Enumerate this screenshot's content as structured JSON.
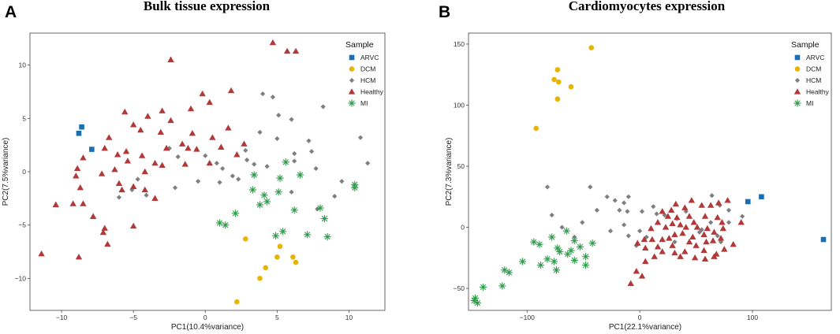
{
  "colors": {
    "ARVC": "#1a6fb4",
    "DCM": "#e8b400",
    "HCM": "#7f7f7f",
    "Healthy": "#b0393a",
    "MI": "#2e9a4a"
  },
  "chart_data": [
    {
      "panel": "A",
      "type": "scatter",
      "title": "Bulk tissue expression",
      "xlabel": "PC1(10.4%variance)",
      "ylabel": "PC2(7.5%variance)",
      "xlim": [
        -12.2,
        12.5
      ],
      "ylim": [
        -13,
        13
      ],
      "xticks": [
        -10,
        -5,
        0,
        5,
        10
      ],
      "yticks": [
        -10,
        -5,
        0,
        5,
        10
      ],
      "legend_title": "Sample",
      "legend_position": "top-right",
      "series": [
        {
          "name": "ARVC",
          "shape": "square",
          "points": [
            [
              -8.6,
              4.2
            ],
            [
              -8.8,
              3.6
            ],
            [
              -7.9,
              2.1
            ]
          ]
        },
        {
          "name": "DCM",
          "shape": "circle",
          "points": [
            [
              2.8,
              -6.3
            ],
            [
              5.2,
              -7.0
            ],
            [
              5.0,
              -8.0
            ],
            [
              6.1,
              -8.0
            ],
            [
              6.3,
              -8.5
            ],
            [
              4.2,
              -9.0
            ],
            [
              3.8,
              -10.0
            ],
            [
              2.2,
              -12.2
            ]
          ]
        },
        {
          "name": "HCM",
          "shape": "diamond",
          "points": [
            [
              4.0,
              7.3
            ],
            [
              4.7,
              7.0
            ],
            [
              8.2,
              6.1
            ],
            [
              5.1,
              5.3
            ],
            [
              6.0,
              4.9
            ],
            [
              3.8,
              3.7
            ],
            [
              5.0,
              3.1
            ],
            [
              7.2,
              2.9
            ],
            [
              10.8,
              3.2
            ],
            [
              7.4,
              1.9
            ],
            [
              6.2,
              1.7
            ],
            [
              2.9,
              1.1
            ],
            [
              2.8,
              2.0
            ],
            [
              3.4,
              0.7
            ],
            [
              4.3,
              0.5
            ],
            [
              6.2,
              1.0
            ],
            [
              7.7,
              0.3
            ],
            [
              11.3,
              0.8
            ],
            [
              0.0,
              1.5
            ],
            [
              0.8,
              0.8
            ],
            [
              1.2,
              0.3
            ],
            [
              1.9,
              -0.4
            ],
            [
              2.3,
              -0.7
            ],
            [
              -0.5,
              -0.9
            ],
            [
              1.0,
              -1.0
            ],
            [
              -2.5,
              2.2
            ],
            [
              -1.9,
              1.4
            ],
            [
              -4.7,
              -0.7
            ],
            [
              -5.1,
              -1.7
            ],
            [
              -4.1,
              -2.2
            ],
            [
              -2.1,
              -1.5
            ],
            [
              -6.0,
              -2.4
            ],
            [
              6.0,
              -1.9
            ],
            [
              7.8,
              -3.5
            ],
            [
              9.0,
              -2.3
            ],
            [
              9.5,
              -0.9
            ]
          ]
        },
        {
          "name": "Healthy",
          "shape": "triangle",
          "points": [
            [
              -2.4,
              10.5
            ],
            [
              4.7,
              12.1
            ],
            [
              5.7,
              11.3
            ],
            [
              6.3,
              11.3
            ],
            [
              1.8,
              7.6
            ],
            [
              -0.2,
              7.3
            ],
            [
              0.3,
              6.5
            ],
            [
              -3.0,
              5.7
            ],
            [
              -5.6,
              5.6
            ],
            [
              -4.0,
              5.2
            ],
            [
              -2.4,
              4.8
            ],
            [
              -1.0,
              5.9
            ],
            [
              -0.9,
              3.6
            ],
            [
              -6.7,
              3.2
            ],
            [
              -7.0,
              2.2
            ],
            [
              -5.0,
              4.4
            ],
            [
              -1.6,
              2.6
            ],
            [
              -3.1,
              3.7
            ],
            [
              -4.5,
              3.9
            ],
            [
              -2.7,
              2.2
            ],
            [
              -1.2,
              2.2
            ],
            [
              0.5,
              3.2
            ],
            [
              1.6,
              4.1
            ],
            [
              1.1,
              2.3
            ],
            [
              2.7,
              2.6
            ],
            [
              2.2,
              1.6
            ],
            [
              -5.5,
              1.9
            ],
            [
              -6.1,
              1.6
            ],
            [
              -4.4,
              1.5
            ],
            [
              -3.5,
              0.8
            ],
            [
              -3.0,
              0.6
            ],
            [
              -1.4,
              0.7
            ],
            [
              -0.6,
              2.1
            ],
            [
              0.3,
              0.8
            ],
            [
              -8.5,
              1.3
            ],
            [
              -8.9,
              0.3
            ],
            [
              -6.3,
              0.2
            ],
            [
              -5.4,
              1.0
            ],
            [
              -4.2,
              0.0
            ],
            [
              -6.0,
              -1.1
            ],
            [
              -8.7,
              -1.5
            ],
            [
              -9.0,
              -0.4
            ],
            [
              -7.2,
              -0.2
            ],
            [
              -5.0,
              -1.4
            ],
            [
              -5.8,
              -1.7
            ],
            [
              -3.5,
              -2.5
            ],
            [
              -4.2,
              -1.7
            ],
            [
              -9.2,
              -3.0
            ],
            [
              -8.5,
              -3.0
            ],
            [
              -10.4,
              -3.1
            ],
            [
              -7.8,
              -4.2
            ],
            [
              -7.1,
              -5.7
            ],
            [
              -6.8,
              -6.8
            ],
            [
              -5.0,
              -5.1
            ],
            [
              -7.0,
              -5.3
            ],
            [
              -8.8,
              -8.0
            ],
            [
              -11.4,
              -7.7
            ]
          ]
        },
        {
          "name": "MI",
          "shape": "star",
          "points": [
            [
              5.6,
              0.9
            ],
            [
              3.4,
              -0.3
            ],
            [
              5.2,
              -0.6
            ],
            [
              6.6,
              -0.3
            ],
            [
              10.4,
              -1.2
            ],
            [
              10.4,
              -1.5
            ],
            [
              3.3,
              -1.7
            ],
            [
              4.1,
              -2.2
            ],
            [
              5.1,
              -1.9
            ],
            [
              4.3,
              -2.8
            ],
            [
              3.8,
              -3.1
            ],
            [
              6.2,
              -3.6
            ],
            [
              8.0,
              -3.4
            ],
            [
              2.1,
              -3.9
            ],
            [
              8.3,
              -4.4
            ],
            [
              1.0,
              -4.8
            ],
            [
              1.4,
              -5.0
            ],
            [
              5.4,
              -5.6
            ],
            [
              4.9,
              -6.0
            ],
            [
              7.1,
              -5.9
            ],
            [
              8.5,
              -6.1
            ]
          ]
        }
      ]
    },
    {
      "panel": "B",
      "type": "scatter",
      "title": "Cardiomyocytes expression",
      "xlabel": "PC1(22.1%variance)",
      "ylabel": "PC2(7.3%variance)",
      "xlim": [
        -152,
        170
      ],
      "ylim": [
        -68,
        159
      ],
      "xticks": [
        -100,
        0,
        100
      ],
      "yticks": [
        -50,
        0,
        50,
        100,
        150
      ],
      "legend_title": "Sample",
      "legend_position": "top-right",
      "series": [
        {
          "name": "ARVC",
          "shape": "square",
          "points": [
            [
              108,
              25
            ],
            [
              96,
              21
            ],
            [
              163,
              -10
            ]
          ]
        },
        {
          "name": "DCM",
          "shape": "circle",
          "points": [
            [
              -43,
              147
            ],
            [
              -73,
              129
            ],
            [
              -76,
              121
            ],
            [
              -72,
              119
            ],
            [
              -61,
              115
            ],
            [
              -73,
              105
            ],
            [
              -92,
              81
            ]
          ]
        },
        {
          "name": "HCM",
          "shape": "diamond",
          "points": [
            [
              -82,
              33
            ],
            [
              -44,
              33
            ],
            [
              -29,
              25
            ],
            [
              -22,
              22
            ],
            [
              -14,
              20
            ],
            [
              -10,
              25
            ],
            [
              -38,
              14
            ],
            [
              -18,
              14
            ],
            [
              -11,
              13
            ],
            [
              2,
              13
            ],
            [
              12,
              17
            ],
            [
              15,
              11
            ],
            [
              22,
              10
            ],
            [
              33,
              7
            ],
            [
              41,
              13
            ],
            [
              -78,
              10
            ],
            [
              -69,
              0
            ],
            [
              -51,
              4
            ],
            [
              -58,
              -8
            ],
            [
              -26,
              -3
            ],
            [
              -14,
              2
            ],
            [
              -10,
              -7
            ],
            [
              0,
              -3
            ],
            [
              6,
              -8
            ],
            [
              -3,
              -15
            ],
            [
              64,
              26
            ],
            [
              71,
              18
            ],
            [
              79,
              14
            ],
            [
              91,
              9
            ],
            [
              79,
              4
            ],
            [
              63,
              4
            ],
            [
              55,
              -2
            ],
            [
              53,
              -4
            ],
            [
              69,
              -7
            ],
            [
              72,
              -12
            ],
            [
              31,
              -12
            ]
          ]
        },
        {
          "name": "Healthy",
          "shape": "triangle",
          "points": [
            [
              78,
              22
            ],
            [
              70,
              20
            ],
            [
              63,
              18
            ],
            [
              46,
              22
            ],
            [
              55,
              18
            ],
            [
              32,
              19
            ],
            [
              40,
              16
            ],
            [
              28,
              14
            ],
            [
              20,
              13
            ],
            [
              25,
              9
            ],
            [
              33,
              8
            ],
            [
              44,
              9
            ],
            [
              58,
              9
            ],
            [
              69,
              8
            ],
            [
              73,
              4
            ],
            [
              48,
              4
            ],
            [
              51,
              0
            ],
            [
              41,
              0
            ],
            [
              36,
              2
            ],
            [
              29,
              3
            ],
            [
              23,
              0
            ],
            [
              16,
              4
            ],
            [
              10,
              -1
            ],
            [
              60,
              -1
            ],
            [
              66,
              -4
            ],
            [
              74,
              -1
            ],
            [
              90,
              4
            ],
            [
              57,
              -6
            ],
            [
              47,
              -8
            ],
            [
              38,
              -5
            ],
            [
              31,
              -6
            ],
            [
              26,
              -9
            ],
            [
              20,
              -10
            ],
            [
              11,
              -10
            ],
            [
              4,
              -10
            ],
            [
              -2,
              -13
            ],
            [
              16,
              -16
            ],
            [
              29,
              -15
            ],
            [
              44,
              -12
            ],
            [
              50,
              -15
            ],
            [
              59,
              -12
            ],
            [
              65,
              -11
            ],
            [
              20,
              -20
            ],
            [
              31,
              -21
            ],
            [
              40,
              -20
            ],
            [
              57,
              -19
            ],
            [
              68,
              -22
            ],
            [
              75,
              -18
            ],
            [
              72,
              -9
            ],
            [
              5,
              -17
            ],
            [
              13,
              -24
            ],
            [
              36,
              -24
            ],
            [
              49,
              -25
            ],
            [
              58,
              -26
            ],
            [
              66,
              -24
            ],
            [
              83,
              -14
            ],
            [
              -3,
              -36
            ],
            [
              2,
              -40
            ],
            [
              -8,
              -46
            ],
            [
              5,
              -28
            ]
          ]
        },
        {
          "name": "MI",
          "shape": "star",
          "points": [
            [
              -65,
              -3
            ],
            [
              -78,
              -8
            ],
            [
              -58,
              -11
            ],
            [
              -94,
              -12
            ],
            [
              -89,
              -14
            ],
            [
              -42,
              -13
            ],
            [
              -73,
              -17
            ],
            [
              -53,
              -16
            ],
            [
              -61,
              -19
            ],
            [
              -71,
              -20
            ],
            [
              -64,
              -22
            ],
            [
              -48,
              -24
            ],
            [
              -82,
              -26
            ],
            [
              -58,
              -27
            ],
            [
              -76,
              -28
            ],
            [
              -104,
              -28
            ],
            [
              -88,
              -31
            ],
            [
              -48,
              -31
            ],
            [
              -74,
              -35
            ],
            [
              -120,
              -35
            ],
            [
              -116,
              -37
            ],
            [
              -139,
              -49
            ],
            [
              -122,
              -48
            ],
            [
              -146,
              -58
            ],
            [
              -147,
              -60
            ],
            [
              -144,
              -62
            ]
          ]
        }
      ]
    }
  ]
}
